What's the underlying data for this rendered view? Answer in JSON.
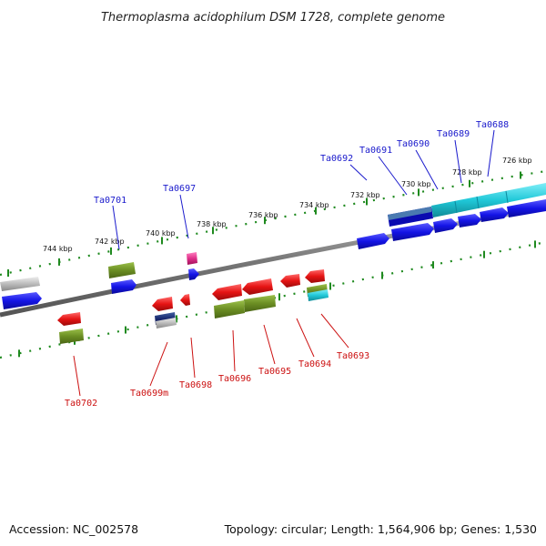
{
  "header": {
    "title": "Thermoplasma acidophilum DSM 1728, complete genome"
  },
  "footer": {
    "accession": "Accession: NC_002578",
    "summary": "Topology: circular; Length: 1,564,906 bp; Genes: 1,530"
  },
  "scale": {
    "ticks": [
      "744 kbp",
      "742 kbp",
      "740 kbp",
      "738 kbp",
      "736 kbp",
      "734 kbp",
      "732 kbp",
      "730 kbp",
      "728 kbp",
      "726 kbp"
    ]
  },
  "genes_forward": [
    "Ta0701",
    "Ta0697",
    "Ta0692",
    "Ta0691",
    "Ta0690",
    "Ta0689",
    "Ta0688"
  ],
  "genes_reverse": [
    "Ta0702",
    "Ta0699m",
    "Ta0698",
    "Ta0696",
    "Ta0695",
    "Ta0694",
    "Ta0693"
  ],
  "colors": {
    "forward_cds": "#1414e6",
    "reverse_cds": "#e61414",
    "gene_bar": "#6b8e23",
    "rrna": "#20c8d8",
    "pseudo": "#bbbbbb",
    "misc": "#e0308a",
    "backbone": "#888888",
    "tick": "#1f8a1f",
    "label_forward": "#1a1acc",
    "label_reverse": "#cc1111"
  }
}
